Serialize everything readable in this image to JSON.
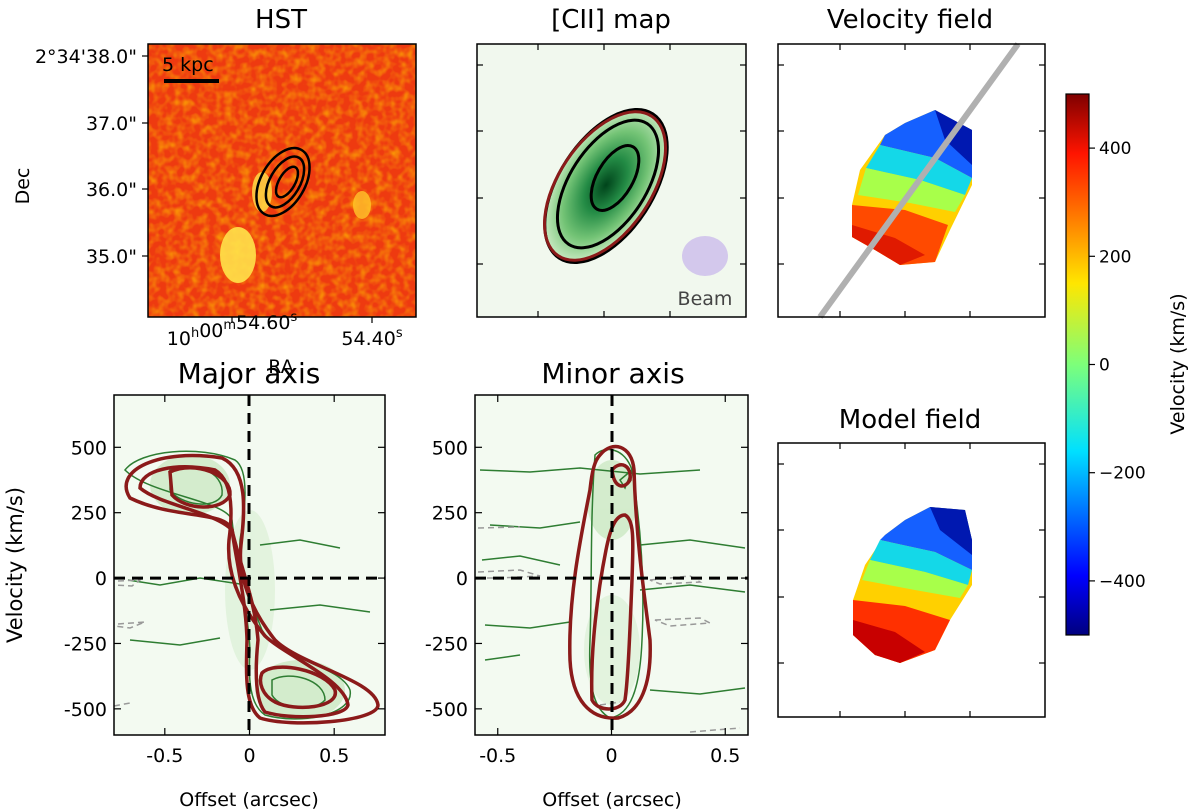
{
  "chart_data": [
    {
      "type": "heatmap",
      "title": "HST",
      "xlabel": "RA",
      "ylabel": "Dec",
      "x_tick_labels": [
        "10h00m54.60s",
        "54.40s"
      ],
      "y_tick_labels": [
        "2°34'38.0\"",
        "37.0\"",
        "36.0\"",
        "35.0\""
      ],
      "scale_bar_label": "5 kpc",
      "colormap": "autumn",
      "overlay": "black contours of [CII] emission near center"
    },
    {
      "type": "heatmap",
      "title": "[CII] map",
      "colormap": "Greens",
      "overlay": "black data contours and dark-red model contour",
      "beam_label": "Beam"
    },
    {
      "type": "heatmap",
      "title": "Velocity field",
      "colormap": "jet",
      "overlay": "grey line marking major axis"
    },
    {
      "type": "heatmap",
      "title": "Model field",
      "colormap": "jet"
    },
    {
      "type": "colorbar",
      "label": "Velocity (km/s)",
      "vmin": -500,
      "vmax": 500,
      "ticks": [
        400,
        200,
        0,
        -200,
        -400
      ],
      "tick_labels": [
        "400",
        "200",
        "0",
        "−200",
        "−400"
      ]
    },
    {
      "type": "contour",
      "title": "Major axis",
      "xlabel": "Offset (arcsec)",
      "ylabel": "Velocity (km/s)",
      "xlim": [
        -0.8,
        0.8
      ],
      "ylim": [
        -600,
        700
      ],
      "x_ticks": [
        -0.5,
        0,
        0.5
      ],
      "x_tick_labels": [
        "-0.5",
        "0",
        "0.5"
      ],
      "y_ticks": [
        500,
        250,
        0,
        -250,
        -500
      ],
      "y_tick_labels": [
        "500",
        "250",
        "0",
        "-250",
        "-500"
      ]
    },
    {
      "type": "contour",
      "title": "Minor axis",
      "xlabel": "Offset (arcsec)",
      "xlim": [
        -0.6,
        0.6
      ],
      "ylim": [
        -600,
        700
      ],
      "x_ticks": [
        -0.5,
        0,
        0.5
      ],
      "x_tick_labels": [
        "-0.5",
        "0",
        "0.5"
      ],
      "y_ticks": [
        500,
        250,
        0,
        -250,
        -500
      ],
      "y_tick_labels": [
        "500",
        "250",
        "0",
        "-250",
        "-500"
      ]
    }
  ]
}
